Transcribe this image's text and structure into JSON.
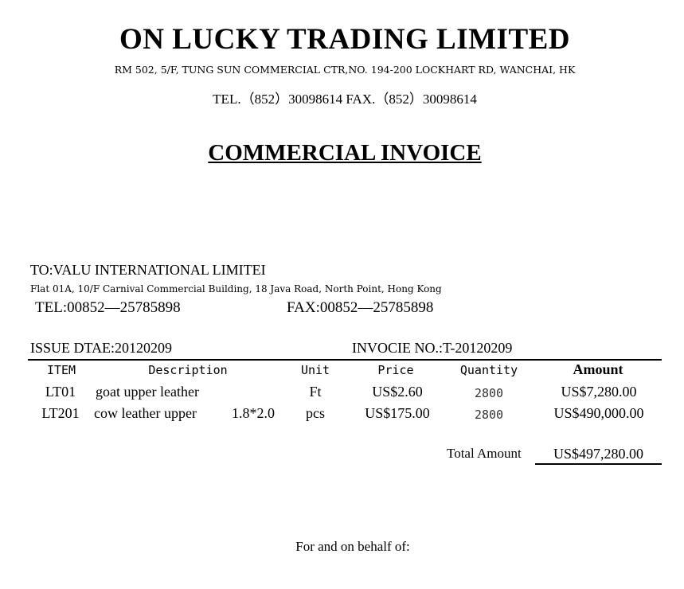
{
  "company": {
    "name": "ON LUCKY TRADING LIMITED",
    "address": "RM 502, 5/F, TUNG SUN COMMERCIAL CTR,NO. 194-200 LOCKHART RD, WANCHAI, HK",
    "contact": "TEL.（852）30098614  FAX.（852）30098614"
  },
  "document_title": "COMMERCIAL INVOICE",
  "recipient": {
    "to": "TO:VALU INTERNATIONAL LIMITEI",
    "address": "Flat 01A, 10/F Carnival Commercial Building, 18 Java Road, North Point, Hong Kong",
    "tel": "TEL:00852—25785898",
    "fax": "FAX:00852—25785898"
  },
  "issue_date": "ISSUE DTAE:20120209",
  "invoice_no": "INVOCIE NO.:T-20120209",
  "table": {
    "headers": {
      "item": "ITEM",
      "description": "Description",
      "unit": "Unit",
      "price": "Price",
      "quantity": "Quantity",
      "amount": "Amount"
    },
    "rows": [
      {
        "item": "LT01",
        "description": "goat upper leather",
        "size": "",
        "unit": "Ft",
        "price": "US$2.60",
        "quantity": "2800",
        "amount": "US$7,280.00"
      },
      {
        "item": "LT201",
        "description": "cow leather upper",
        "size": "1.8*2.0",
        "unit": "pcs",
        "price": "US$175.00",
        "quantity": "2800",
        "amount": "US$490,000.00"
      }
    ]
  },
  "total": {
    "label": "Total Amount",
    "value": "US$497,280.00"
  },
  "footer": "For and on behalf of:"
}
